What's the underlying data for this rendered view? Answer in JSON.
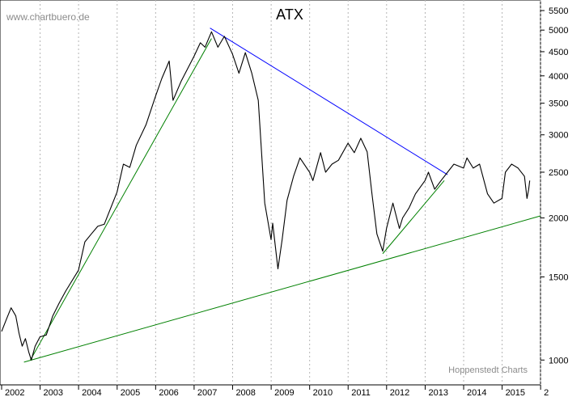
{
  "watermark": "www.chartbuero.de",
  "credit": "Hoppenstedt Charts",
  "chart_data": {
    "type": "line",
    "title": "ATX",
    "xlabel": "",
    "ylabel": "",
    "y_scale": "log",
    "ylim": [
      900,
      5700
    ],
    "xlim": [
      "2002-01-01",
      "2015-12-31"
    ],
    "y_ticks": [
      1000,
      1500,
      2000,
      2500,
      3000,
      3500,
      4000,
      4500,
      5000,
      5500
    ],
    "x_ticks": [
      "2002",
      "2003",
      "2004",
      "2005",
      "2006",
      "2007",
      "2008",
      "2009",
      "2010",
      "2011",
      "2012",
      "2013",
      "2014",
      "2015",
      "2"
    ],
    "grid": "vertical dotted",
    "colors": {
      "price": "#000000",
      "downtrend": "#0000ff",
      "uptrend": "#008000",
      "grid": "#b4b4b4"
    },
    "series": [
      {
        "values": [
          [
            "2002-01-01",
            1150
          ],
          [
            "2002-02-15",
            1220
          ],
          [
            "2002-04-01",
            1290
          ],
          [
            "2002-05-15",
            1240
          ],
          [
            "2002-06-15",
            1140
          ],
          [
            "2002-07-15",
            1070
          ],
          [
            "2002-08-15",
            1110
          ],
          [
            "2002-09-15",
            1040
          ],
          [
            "2002-10-10",
            1000
          ],
          [
            "2002-11-15",
            1070
          ],
          [
            "2002-12-31",
            1120
          ],
          [
            "2003-03-01",
            1130
          ],
          [
            "2003-05-01",
            1240
          ],
          [
            "2003-07-01",
            1320
          ],
          [
            "2003-09-01",
            1400
          ],
          [
            "2003-12-31",
            1550
          ],
          [
            "2004-03-01",
            1780
          ],
          [
            "2004-05-01",
            1850
          ],
          [
            "2004-07-01",
            1920
          ],
          [
            "2004-09-01",
            1940
          ],
          [
            "2004-12-31",
            2270
          ],
          [
            "2005-03-01",
            2600
          ],
          [
            "2005-05-01",
            2560
          ],
          [
            "2005-07-01",
            2850
          ],
          [
            "2005-10-01",
            3150
          ],
          [
            "2005-12-31",
            3620
          ],
          [
            "2006-03-01",
            3950
          ],
          [
            "2006-05-10",
            4300
          ],
          [
            "2006-06-15",
            3550
          ],
          [
            "2006-09-01",
            3900
          ],
          [
            "2006-12-31",
            4400
          ],
          [
            "2007-03-01",
            4700
          ],
          [
            "2007-04-15",
            4600
          ],
          [
            "2007-06-15",
            4960
          ],
          [
            "2007-08-15",
            4600
          ],
          [
            "2007-10-15",
            4850
          ],
          [
            "2007-12-31",
            4450
          ],
          [
            "2008-03-01",
            4050
          ],
          [
            "2008-05-01",
            4480
          ],
          [
            "2008-07-01",
            4050
          ],
          [
            "2008-09-01",
            3550
          ],
          [
            "2008-11-01",
            2150
          ],
          [
            "2008-12-31",
            1800
          ],
          [
            "2009-01-15",
            1950
          ],
          [
            "2009-03-06",
            1560
          ],
          [
            "2009-04-15",
            1800
          ],
          [
            "2009-06-01",
            2180
          ],
          [
            "2009-08-01",
            2450
          ],
          [
            "2009-10-01",
            2680
          ],
          [
            "2009-12-31",
            2500
          ],
          [
            "2010-02-01",
            2400
          ],
          [
            "2010-04-15",
            2750
          ],
          [
            "2010-06-01",
            2500
          ],
          [
            "2010-08-01",
            2600
          ],
          [
            "2010-10-01",
            2650
          ],
          [
            "2010-12-31",
            2880
          ],
          [
            "2011-03-01",
            2750
          ],
          [
            "2011-05-01",
            2950
          ],
          [
            "2011-07-01",
            2760
          ],
          [
            "2011-08-15",
            2250
          ],
          [
            "2011-10-01",
            1850
          ],
          [
            "2011-11-25",
            1700
          ],
          [
            "2011-12-31",
            1900
          ],
          [
            "2012-03-01",
            2150
          ],
          [
            "2012-05-01",
            1900
          ],
          [
            "2012-06-01",
            2000
          ],
          [
            "2012-08-01",
            2100
          ],
          [
            "2012-10-01",
            2250
          ],
          [
            "2012-12-31",
            2400
          ],
          [
            "2013-02-01",
            2500
          ],
          [
            "2013-04-01",
            2300
          ],
          [
            "2013-06-01",
            2400
          ],
          [
            "2013-08-01",
            2500
          ],
          [
            "2013-10-01",
            2600
          ],
          [
            "2013-12-31",
            2550
          ],
          [
            "2014-02-01",
            2680
          ],
          [
            "2014-04-01",
            2550
          ],
          [
            "2014-06-01",
            2600
          ],
          [
            "2014-08-15",
            2250
          ],
          [
            "2014-10-15",
            2150
          ],
          [
            "2014-12-31",
            2200
          ],
          [
            "2015-02-01",
            2500
          ],
          [
            "2015-04-01",
            2600
          ],
          [
            "2015-06-01",
            2550
          ],
          [
            "2015-08-01",
            2450
          ],
          [
            "2015-08-25",
            2200
          ],
          [
            "2015-09-10",
            2300
          ],
          [
            "2015-09-20",
            2400
          ]
        ]
      }
    ],
    "trendlines": [
      {
        "kind": "downtrend",
        "color": "#0000ff",
        "points": [
          [
            "2007-06-01",
            5050
          ],
          [
            "2013-08-01",
            2470
          ]
        ]
      },
      {
        "kind": "uptrend",
        "color": "#008000",
        "points": [
          [
            "2002-10-01",
            1000
          ],
          [
            "2007-06-15",
            4800
          ]
        ]
      },
      {
        "kind": "uptrend",
        "color": "#008000",
        "points": [
          [
            "2011-11-25",
            1680
          ],
          [
            "2013-07-01",
            2400
          ]
        ]
      },
      {
        "kind": "uptrend",
        "color": "#008000",
        "points": [
          [
            "2002-08-01",
            990
          ],
          [
            "2015-12-31",
            2020
          ]
        ]
      }
    ]
  }
}
